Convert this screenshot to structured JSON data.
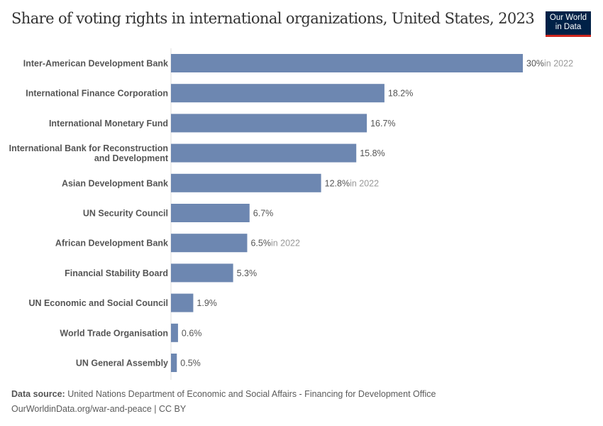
{
  "title": "Share of voting rights in international organizations, United States, 2023",
  "logo": {
    "line1": "Our World",
    "line2": "in Data"
  },
  "footer": {
    "source_label": "Data source:",
    "source_text": "United Nations Department of Economic and Social Affairs - Financing for Development Office",
    "url_license": "OurWorldinData.org/war-and-peace | CC BY"
  },
  "chart_data": {
    "type": "bar",
    "orientation": "horizontal",
    "title": "Share of voting rights in international organizations, United States, 2023",
    "unit": "%",
    "bar_color": "#6d87b1",
    "xlim": [
      0,
      30
    ],
    "categories": [
      "Inter-American Development Bank",
      "International Finance Corporation",
      "International Monetary Fund",
      "International Bank for Reconstruction and Development",
      "Asian Development Bank",
      "UN Security Council",
      "African Development Bank",
      "Financial Stability Board",
      "UN Economic and Social Council",
      "World Trade Organisation",
      "UN General Assembly"
    ],
    "values": [
      30,
      18.2,
      16.7,
      15.8,
      12.8,
      6.7,
      6.5,
      5.3,
      1.9,
      0.6,
      0.5
    ],
    "value_labels": [
      "30%",
      "18.2%",
      "16.7%",
      "15.8%",
      "12.8%",
      "6.7%",
      "6.5%",
      "5.3%",
      "1.9%",
      "0.6%",
      "0.5%"
    ],
    "year_notes": [
      "in 2022",
      "",
      "",
      "",
      "in 2022",
      "",
      "in 2022",
      "",
      "",
      "",
      ""
    ]
  }
}
